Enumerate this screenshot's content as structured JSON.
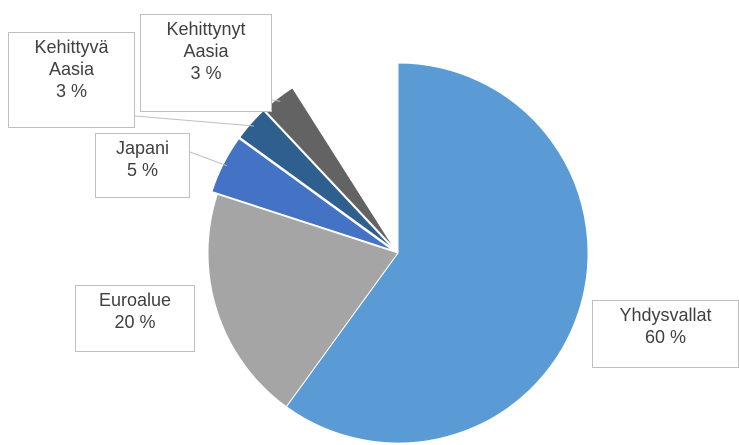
{
  "chart_data": {
    "type": "pie",
    "categories": [
      "Yhdysvallat",
      "Euroalue",
      "Japani",
      "Kehittyvä Aasia",
      "Kehittynyt Aasia"
    ],
    "values": [
      60,
      20,
      5,
      3,
      3
    ],
    "value_labels": [
      "60 %",
      "20 %",
      "5 %",
      "3 %",
      "3 %"
    ],
    "colors": [
      "#5b9bd5",
      "#a5a5a5",
      "#4472c4",
      "#2f5f8f",
      "#636363"
    ]
  }
}
